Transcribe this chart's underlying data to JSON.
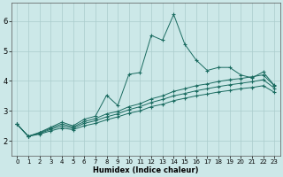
{
  "title": "",
  "xlabel": "Humidex (Indice chaleur)",
  "ylabel": "",
  "bg_color": "#cce8e8",
  "grid_color": "#aacccc",
  "line_color": "#1a6b60",
  "xlim": [
    -0.5,
    23.5
  ],
  "ylim": [
    1.5,
    6.6
  ],
  "yticks": [
    2,
    3,
    4,
    5,
    6
  ],
  "xticks": [
    0,
    1,
    2,
    3,
    4,
    5,
    6,
    7,
    8,
    9,
    10,
    11,
    12,
    13,
    14,
    15,
    16,
    17,
    18,
    19,
    20,
    21,
    22,
    23
  ],
  "line1_x": [
    0,
    1,
    2,
    3,
    4,
    5,
    6,
    7,
    8,
    9,
    10,
    11,
    12,
    13,
    14,
    15,
    16,
    17,
    18,
    19,
    20,
    21,
    22,
    23
  ],
  "line1_y": [
    2.55,
    2.15,
    2.28,
    2.45,
    2.62,
    2.5,
    2.72,
    2.82,
    3.52,
    3.18,
    4.22,
    4.28,
    5.52,
    5.36,
    6.22,
    5.22,
    4.7,
    4.35,
    4.45,
    4.45,
    4.2,
    4.1,
    4.3,
    3.85
  ],
  "line2_x": [
    0,
    1,
    2,
    3,
    4,
    5,
    6,
    7,
    8,
    9,
    10,
    11,
    12,
    13,
    14,
    15,
    16,
    17,
    18,
    19,
    20,
    21,
    22,
    23
  ],
  "line2_y": [
    2.55,
    2.15,
    2.26,
    2.42,
    2.56,
    2.46,
    2.64,
    2.74,
    2.9,
    2.98,
    3.14,
    3.24,
    3.4,
    3.5,
    3.65,
    3.74,
    3.84,
    3.9,
    3.98,
    4.04,
    4.08,
    4.14,
    4.2,
    3.84
  ],
  "line3_x": [
    0,
    1,
    2,
    3,
    4,
    5,
    6,
    7,
    8,
    9,
    10,
    11,
    12,
    13,
    14,
    15,
    16,
    17,
    18,
    19,
    20,
    21,
    22,
    23
  ],
  "line3_y": [
    2.55,
    2.15,
    2.24,
    2.38,
    2.5,
    2.42,
    2.58,
    2.67,
    2.8,
    2.9,
    3.04,
    3.14,
    3.28,
    3.38,
    3.5,
    3.58,
    3.67,
    3.74,
    3.81,
    3.87,
    3.92,
    3.97,
    4.04,
    3.76
  ],
  "line4_x": [
    0,
    1,
    2,
    3,
    4,
    5,
    6,
    7,
    8,
    9,
    10,
    11,
    12,
    13,
    14,
    15,
    16,
    17,
    18,
    19,
    20,
    21,
    22,
    23
  ],
  "line4_y": [
    2.55,
    2.15,
    2.22,
    2.33,
    2.43,
    2.37,
    2.5,
    2.58,
    2.7,
    2.8,
    2.92,
    3.0,
    3.14,
    3.22,
    3.34,
    3.42,
    3.5,
    3.56,
    3.63,
    3.68,
    3.74,
    3.78,
    3.84,
    3.62
  ]
}
